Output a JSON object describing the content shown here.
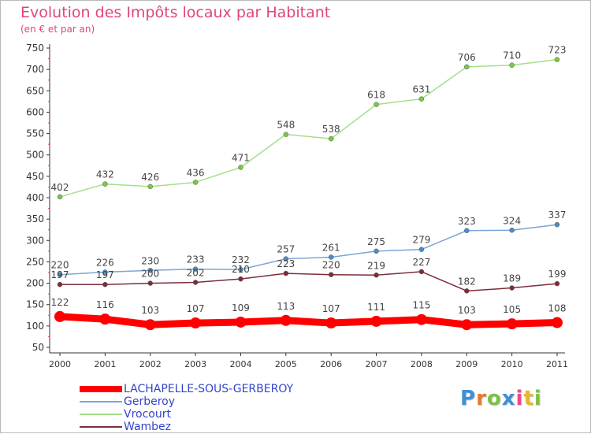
{
  "header": {
    "title": "Evolution des Impôts locaux par Habitant",
    "subtitle": "(en € et par an)"
  },
  "logo": {
    "text": "Proxiti",
    "letter_colors": [
      "#3d8fd6",
      "#e8772e",
      "#7cc242",
      "#3d8fd6",
      "#e84d8a",
      "#e8b52e",
      "#7cc242"
    ]
  },
  "chart_data": {
    "type": "line",
    "title": "Evolution des Impôts locaux par Habitant",
    "subtitle": "(en € et par an)",
    "xlabel": "",
    "ylabel": "",
    "x": [
      "2000",
      "2001",
      "2002",
      "2003",
      "2004",
      "2005",
      "2006",
      "2007",
      "2008",
      "2009",
      "2010",
      "2011"
    ],
    "ylim": [
      50,
      750
    ],
    "yticks": [
      50,
      100,
      150,
      200,
      250,
      300,
      350,
      400,
      450,
      500,
      550,
      600,
      650,
      700,
      750
    ],
    "grid": false,
    "legend_position": "bottom-left",
    "series": [
      {
        "name": "LACHAPELLE-SOUS-GERBEROY",
        "color": "#ff0000",
        "marker_color": "#ff0000",
        "values": [
          122,
          116,
          103,
          107,
          109,
          113,
          107,
          111,
          115,
          103,
          105,
          108
        ]
      },
      {
        "name": "Gerberoy",
        "color": "#7aa6d2",
        "marker_color": "#4d8cc8",
        "values": [
          220,
          226,
          230,
          233,
          232,
          257,
          261,
          275,
          279,
          323,
          324,
          337
        ]
      },
      {
        "name": "Vrocourt",
        "color": "#a3e08a",
        "marker_color": "#79c944",
        "values": [
          402,
          432,
          426,
          436,
          471,
          548,
          538,
          618,
          631,
          706,
          710,
          723
        ]
      },
      {
        "name": "Wambez",
        "color": "#7a2e3a",
        "marker_color": "#7a2e3a",
        "values": [
          197,
          197,
          200,
          202,
          210,
          223,
          220,
          219,
          227,
          182,
          189,
          199
        ]
      }
    ]
  }
}
